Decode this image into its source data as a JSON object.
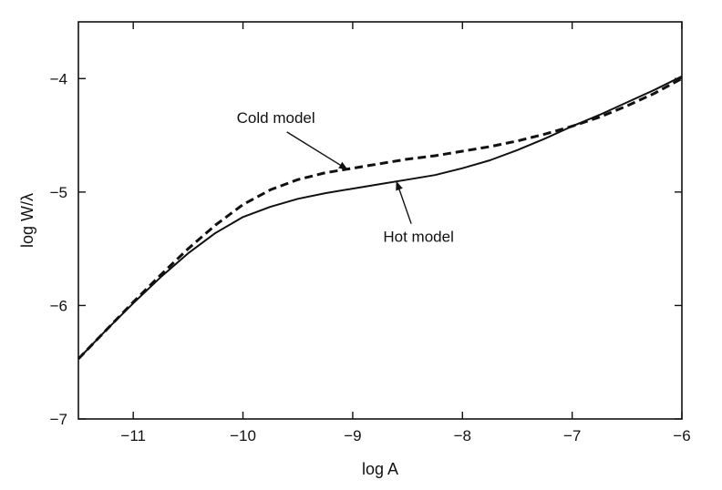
{
  "chart_data": {
    "type": "line",
    "xlabel": "log A",
    "ylabel": "log W/λ",
    "xlim": [
      -11.5,
      -6
    ],
    "ylim": [
      -7,
      -3.5
    ],
    "grid": false,
    "x_ticks": [
      -11,
      -10,
      -9,
      -8,
      -7,
      -6
    ],
    "x_tick_labels": [
      "−11",
      "−10",
      "−9",
      "−8",
      "−7",
      "−6"
    ],
    "y_ticks": [
      -7,
      -6,
      -5,
      -4
    ],
    "y_tick_labels": [
      "−7",
      "−6",
      "−5",
      "−4"
    ],
    "series": [
      {
        "name": "Cold model",
        "style": "dashed",
        "color": "#111111",
        "x": [
          -11.5,
          -11.25,
          -11.0,
          -10.75,
          -10.5,
          -10.25,
          -10.0,
          -9.75,
          -9.5,
          -9.25,
          -9.0,
          -8.75,
          -8.5,
          -8.25,
          -8.0,
          -7.75,
          -7.5,
          -7.25,
          -7.0,
          -6.75,
          -6.5,
          -6.25,
          -6.0
        ],
        "y": [
          -6.47,
          -6.22,
          -5.97,
          -5.73,
          -5.5,
          -5.29,
          -5.11,
          -4.98,
          -4.89,
          -4.83,
          -4.79,
          -4.75,
          -4.71,
          -4.68,
          -4.64,
          -4.6,
          -4.55,
          -4.49,
          -4.42,
          -4.34,
          -4.24,
          -4.13,
          -4.0
        ]
      },
      {
        "name": "Hot model",
        "style": "solid",
        "color": "#111111",
        "x": [
          -11.5,
          -11.25,
          -11.0,
          -10.75,
          -10.5,
          -10.25,
          -10.0,
          -9.75,
          -9.5,
          -9.25,
          -9.0,
          -8.75,
          -8.5,
          -8.25,
          -8.0,
          -7.75,
          -7.5,
          -7.25,
          -7.0,
          -6.75,
          -6.5,
          -6.25,
          -6.0
        ],
        "y": [
          -6.47,
          -6.22,
          -5.98,
          -5.75,
          -5.54,
          -5.36,
          -5.22,
          -5.13,
          -5.06,
          -5.01,
          -4.97,
          -4.93,
          -4.89,
          -4.85,
          -4.79,
          -4.72,
          -4.63,
          -4.53,
          -4.42,
          -4.32,
          -4.21,
          -4.1,
          -3.98
        ]
      }
    ],
    "annotations": [
      {
        "text": "Cold model",
        "label_x": -9.7,
        "label_y": -4.39,
        "arrow_to_x": -9.05,
        "arrow_to_y": -4.8
      },
      {
        "text": "Hot model",
        "label_x": -8.4,
        "label_y": -5.44,
        "arrow_to_x": -8.6,
        "arrow_to_y": -4.91
      }
    ]
  }
}
